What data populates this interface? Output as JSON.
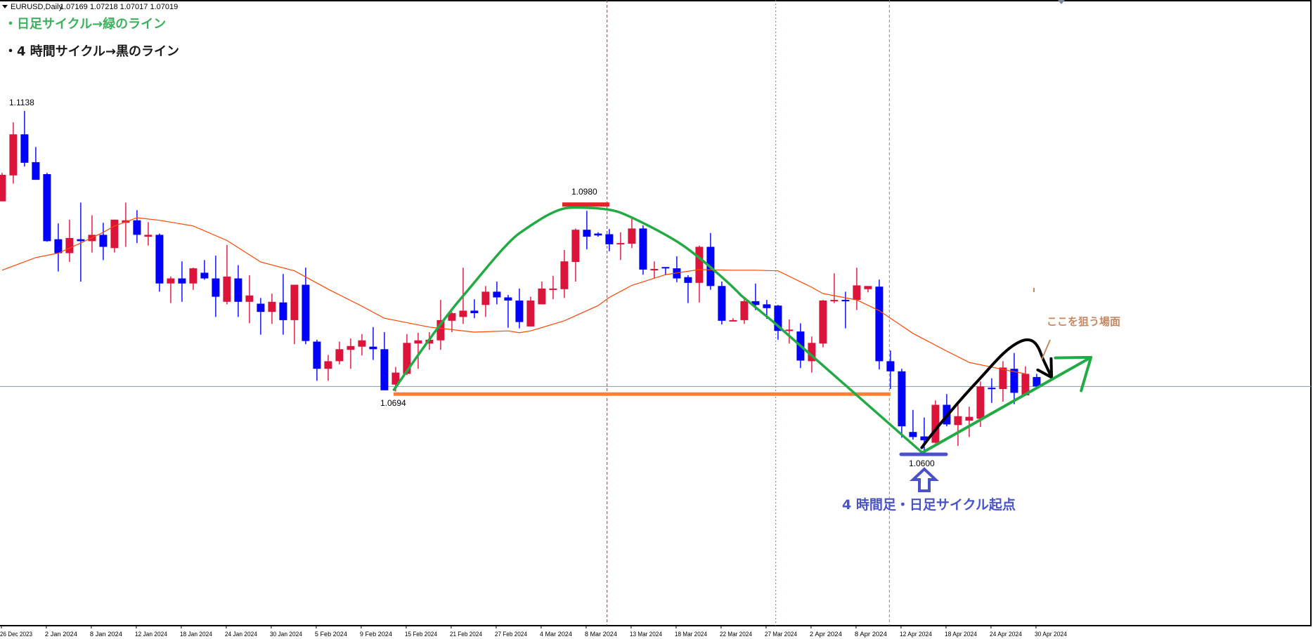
{
  "header": {
    "symbol_label": "EURUSD,Daily",
    "ohlc_label": "1.07169 1.07218 1.07017 1.07019"
  },
  "notes": {
    "daily_cycle": "・日足サイクル→緑のライン",
    "h4_cycle": "・4 時間サイクル→黒のライン",
    "start_point": "4 時間足・日足サイクル起点",
    "target": "ここを狙う場面"
  },
  "colors": {
    "bull": "#dc143c",
    "bear": "#0000ff",
    "ma": "#ff4500",
    "daily_cycle": "#22aa44",
    "h4_cycle": "#000000",
    "support": "#ff8030",
    "top_mark": "#e8202a",
    "bottom_mark": "#4a52c8"
  },
  "chart_data": {
    "type": "candlestick",
    "symbol": "EURUSD",
    "timeframe": "Daily",
    "ylim": [
      1.05,
      1.13
    ],
    "price_labels": [
      {
        "text": "1.1138",
        "bar": 1,
        "price": 1.1138
      },
      {
        "text": "1.0980",
        "bar": 52,
        "price": 1.098
      },
      {
        "text": "1.0694",
        "bar": 35,
        "price": 1.0694
      },
      {
        "text": "1.0600",
        "bar": 82,
        "price": 1.06
      }
    ],
    "x_tick_labels": [
      "26 Dec 2023",
      "2 Jan 2024",
      "8 Jan 2024",
      "12 Jan 2024",
      "18 Jan 2024",
      "24 Jan 2024",
      "30 Jan 2024",
      "5 Feb 2024",
      "9 Feb 2024",
      "15 Feb 2024",
      "21 Feb 2024",
      "27 Feb 2024",
      "4 Mar 2024",
      "8 Mar 2024",
      "13 Mar 2024",
      "18 Mar 2024",
      "22 Mar 2024",
      "27 Mar 2024",
      "2 Apr 2024",
      "8 Apr 2024",
      "12 Apr 2024",
      "18 Apr 2024",
      "24 Apr 2024",
      "30 Apr 2024"
    ],
    "x_tick_every_bars": 4,
    "candles_ohlc": [
      [
        1.0995,
        1.104,
        1.0995,
        1.1037
      ],
      [
        1.1036,
        1.112,
        1.1023,
        1.1101
      ],
      [
        1.1101,
        1.1138,
        1.105,
        1.1056
      ],
      [
        1.1057,
        1.1081,
        1.1029,
        1.1029
      ],
      [
        1.1038,
        1.104,
        1.0931,
        1.0932
      ],
      [
        1.0935,
        1.096,
        1.0884,
        1.0913
      ],
      [
        1.0913,
        1.0966,
        1.0899,
        1.0937
      ],
      [
        1.0935,
        1.0993,
        1.0868,
        1.0932
      ],
      [
        1.0932,
        1.0973,
        1.0914,
        1.0942
      ],
      [
        1.0942,
        1.0961,
        1.0902,
        1.0923
      ],
      [
        1.0921,
        1.0966,
        1.0914,
        1.0966
      ],
      [
        1.0961,
        1.0993,
        1.0923,
        1.0965
      ],
      [
        1.0965,
        1.0981,
        1.0929,
        1.0942
      ],
      [
        1.0939,
        1.0962,
        1.0925,
        1.0942
      ],
      [
        1.0942,
        1.0944,
        1.0852,
        1.0865
      ],
      [
        1.0865,
        1.0876,
        1.0834,
        1.0873
      ],
      [
        1.0873,
        1.09,
        1.0836,
        1.0865
      ],
      [
        1.0865,
        1.089,
        1.0855,
        1.0889
      ],
      [
        1.0882,
        1.0902,
        1.0871,
        1.0873
      ],
      [
        1.0873,
        1.0909,
        1.0812,
        1.0844
      ],
      [
        1.0836,
        1.0926,
        1.0832,
        1.0876
      ],
      [
        1.0873,
        1.0894,
        1.0812,
        1.0836
      ],
      [
        1.0836,
        1.0878,
        1.0802,
        1.0846
      ],
      [
        1.0833,
        1.0842,
        1.0784,
        1.082
      ],
      [
        1.082,
        1.0849,
        1.0801,
        1.0836
      ],
      [
        1.0835,
        1.088,
        1.0784,
        1.0807
      ],
      [
        1.0807,
        1.0863,
        1.0769,
        1.0863
      ],
      [
        1.0863,
        1.089,
        1.0769,
        1.0774
      ],
      [
        1.0773,
        1.0776,
        1.0711,
        1.073
      ],
      [
        1.073,
        1.0752,
        1.0711,
        1.0742
      ],
      [
        1.0742,
        1.0773,
        1.0737,
        1.0761
      ],
      [
        1.076,
        1.0778,
        1.073,
        1.0766
      ],
      [
        1.0765,
        1.0785,
        1.0751,
        1.0775
      ],
      [
        1.0765,
        1.0796,
        1.0744,
        1.0761
      ],
      [
        1.0761,
        1.0788,
        1.0696,
        1.0696
      ],
      [
        1.0705,
        1.0733,
        1.0694,
        1.0724
      ],
      [
        1.0722,
        1.0785,
        1.072,
        1.0771
      ],
      [
        1.077,
        1.0787,
        1.073,
        1.0775
      ],
      [
        1.077,
        1.0788,
        1.076,
        1.0776
      ],
      [
        1.0775,
        1.0839,
        1.076,
        1.0807
      ],
      [
        1.0806,
        1.082,
        1.0788,
        1.0818
      ],
      [
        1.0812,
        1.089,
        1.0801,
        1.0822
      ],
      [
        1.0822,
        1.084,
        1.081,
        1.0818
      ],
      [
        1.0831,
        1.0861,
        1.0812,
        1.0852
      ],
      [
        1.0852,
        1.0868,
        1.0832,
        1.0843
      ],
      [
        1.0843,
        1.0847,
        1.0795,
        1.0838
      ],
      [
        1.0838,
        1.0857,
        1.0794,
        1.0804
      ],
      [
        1.0797,
        1.0844,
        1.0797,
        1.0838
      ],
      [
        1.0832,
        1.0868,
        1.0832,
        1.0857
      ],
      [
        1.0855,
        1.0877,
        1.084,
        1.0857
      ],
      [
        1.0856,
        1.0918,
        1.0842,
        1.09
      ],
      [
        1.0899,
        1.0952,
        1.0868,
        1.095
      ],
      [
        1.095,
        1.098,
        1.0919,
        1.0939
      ],
      [
        1.0944,
        1.0946,
        1.0939,
        1.0941
      ],
      [
        1.0943,
        1.0951,
        1.0916,
        1.0927
      ],
      [
        1.0928,
        1.0946,
        1.0902,
        1.0929
      ],
      [
        1.0928,
        1.0968,
        1.0921,
        1.0952
      ],
      [
        1.0952,
        1.0957,
        1.0879,
        1.0887
      ],
      [
        1.0887,
        1.09,
        1.0873,
        1.0888
      ],
      [
        1.0891,
        1.0891,
        1.0878,
        1.0889
      ],
      [
        1.0889,
        1.0908,
        1.0867,
        1.0873
      ],
      [
        1.0875,
        1.0878,
        1.0834,
        1.0866
      ],
      [
        1.0866,
        1.0925,
        1.0835,
        1.0923
      ],
      [
        1.0923,
        1.0945,
        1.0855,
        1.0861
      ],
      [
        1.0861,
        1.0868,
        1.08,
        1.0806
      ],
      [
        1.0806,
        1.081,
        1.0806,
        1.0807
      ],
      [
        1.0807,
        1.0843,
        1.0801,
        1.0837
      ],
      [
        1.0837,
        1.0865,
        1.0823,
        1.0831
      ],
      [
        1.0832,
        1.0839,
        1.0809,
        1.0826
      ],
      [
        1.083,
        1.0831,
        1.0776,
        1.079
      ],
      [
        1.0791,
        1.0808,
        1.077,
        1.0792
      ],
      [
        1.0789,
        1.0802,
        1.0731,
        1.0743
      ],
      [
        1.0742,
        1.0781,
        1.0724,
        1.0771
      ],
      [
        1.077,
        1.0839,
        1.0764,
        1.0838
      ],
      [
        1.0838,
        1.0881,
        1.0834,
        1.0839
      ],
      [
        1.0839,
        1.0852,
        1.0794,
        1.0838
      ],
      [
        1.0839,
        1.089,
        1.0823,
        1.0862
      ],
      [
        1.0856,
        1.0861,
        1.0851,
        1.0861
      ],
      [
        1.086,
        1.0871,
        1.0729,
        1.0742
      ],
      [
        1.0742,
        1.0759,
        1.0698,
        1.0726
      ],
      [
        1.0726,
        1.073,
        1.0621,
        1.0639
      ],
      [
        1.063,
        1.0665,
        1.0618,
        1.0622
      ],
      [
        1.0623,
        1.0653,
        1.06,
        1.0617
      ],
      [
        1.0613,
        1.068,
        1.0612,
        1.0673
      ],
      [
        1.0673,
        1.069,
        1.0639,
        1.0642
      ],
      [
        1.0641,
        1.0677,
        1.0608,
        1.0655
      ],
      [
        1.0648,
        1.067,
        1.0622,
        1.0654
      ],
      [
        1.0651,
        1.071,
        1.0638,
        1.0702
      ],
      [
        1.07,
        1.0715,
        1.0676,
        1.0698
      ],
      [
        1.0698,
        1.0742,
        1.0678,
        1.0732
      ],
      [
        1.073,
        1.0755,
        1.0674,
        1.0692
      ],
      [
        1.0688,
        1.0734,
        1.0688,
        1.0722
      ],
      [
        1.0717,
        1.0722,
        1.0702,
        1.0702
      ]
    ],
    "moving_average": [
      [
        0,
        1.0886
      ],
      [
        3,
        1.0906
      ],
      [
        5,
        1.0913
      ],
      [
        7,
        1.0929
      ],
      [
        9,
        1.0946
      ],
      [
        10,
        1.0956
      ],
      [
        12,
        1.0969
      ],
      [
        14,
        1.0965
      ],
      [
        17,
        1.0956
      ],
      [
        20,
        1.0933
      ],
      [
        23,
        1.0899
      ],
      [
        26,
        1.0885
      ],
      [
        29,
        1.0856
      ],
      [
        32,
        1.0829
      ],
      [
        34,
        1.081
      ],
      [
        38,
        1.0796
      ],
      [
        42,
        1.0788
      ],
      [
        45,
        1.079
      ],
      [
        46,
        1.0787
      ],
      [
        47,
        1.079
      ],
      [
        50,
        1.0806
      ],
      [
        53,
        1.083
      ],
      [
        54,
        1.0843
      ],
      [
        56,
        1.0862
      ],
      [
        59,
        1.0879
      ],
      [
        62,
        1.0887
      ],
      [
        65,
        1.0886
      ],
      [
        67,
        1.0886
      ],
      [
        69,
        1.0885
      ],
      [
        72,
        1.0859
      ],
      [
        73,
        1.0849
      ],
      [
        76,
        1.0839
      ],
      [
        78,
        1.0822
      ],
      [
        81,
        1.0786
      ],
      [
        84,
        1.0758
      ],
      [
        86,
        1.074
      ],
      [
        89,
        1.0729
      ],
      [
        91,
        1.0722
      ]
    ],
    "horizontal_lines": [
      {
        "role": "current-price",
        "price": 1.0702,
        "color": "#8899aa"
      },
      {
        "role": "support",
        "price": 1.069,
        "from_bar": 35,
        "to_bar": 79,
        "color": "#ff8030"
      },
      {
        "role": "top-mark",
        "price": 1.099,
        "from_bar": 50,
        "to_bar": 54,
        "color": "#e8202a"
      }
    ],
    "vertical_lines": [
      {
        "bar": 53.8,
        "color": "#cc2222",
        "style": "dashed"
      },
      {
        "bar": 68.8,
        "color": "#3388dd",
        "style": "dotted"
      },
      {
        "bar": 78.9,
        "color": "#888888",
        "style": "dashed"
      }
    ],
    "grid": false
  }
}
